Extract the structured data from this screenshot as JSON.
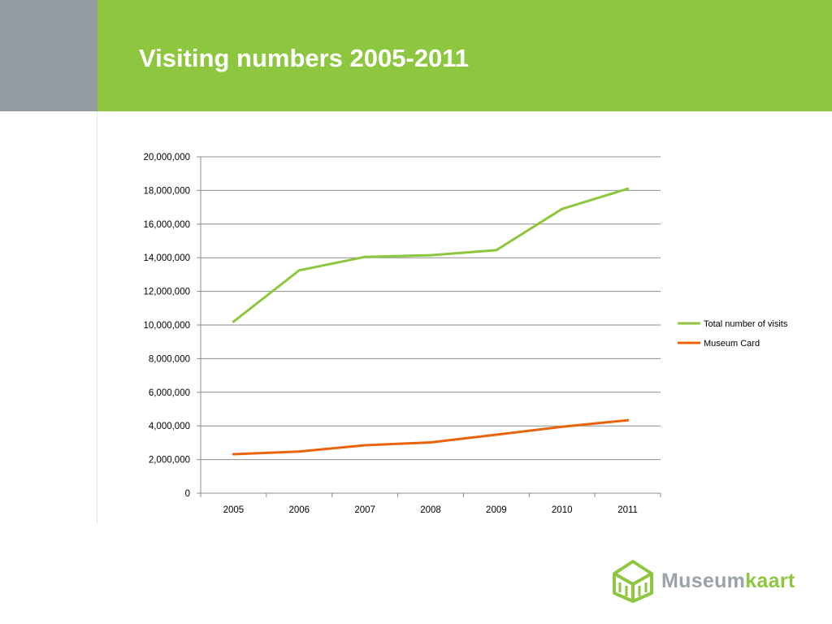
{
  "slide": {
    "title": "Visiting numbers 2005-2011",
    "colors": {
      "header_green": "#8dc63f",
      "header_gray": "#939ba1"
    }
  },
  "logo": {
    "icon": "museum-house-icon",
    "word_part1": "Museum",
    "word_part2": "kaart",
    "colors": {
      "part1": "#9aa3a8",
      "part2": "#8dc63f",
      "icon": "#8dc63f"
    }
  },
  "chart_data": {
    "type": "line",
    "categories": [
      "2005",
      "2006",
      "2007",
      "2008",
      "2009",
      "2010",
      "2011"
    ],
    "series": [
      {
        "name": "Total number of visits",
        "color": "#8dc63f",
        "values": [
          10200000,
          13250000,
          14050000,
          14150000,
          14450000,
          16900000,
          18100000
        ]
      },
      {
        "name": "Museum Card",
        "color": "#e8630a",
        "values": [
          2320000,
          2480000,
          2850000,
          3020000,
          3480000,
          3950000,
          4340000
        ]
      }
    ],
    "yticks": [
      "0",
      "2,000,000",
      "4,000,000",
      "6,000,000",
      "8,000,000",
      "10,000,000",
      "12,000,000",
      "14,000,000",
      "16,000,000",
      "18,000,000",
      "20,000,000"
    ],
    "ylim": [
      0,
      20000000
    ],
    "grid": true,
    "legend": "right"
  }
}
